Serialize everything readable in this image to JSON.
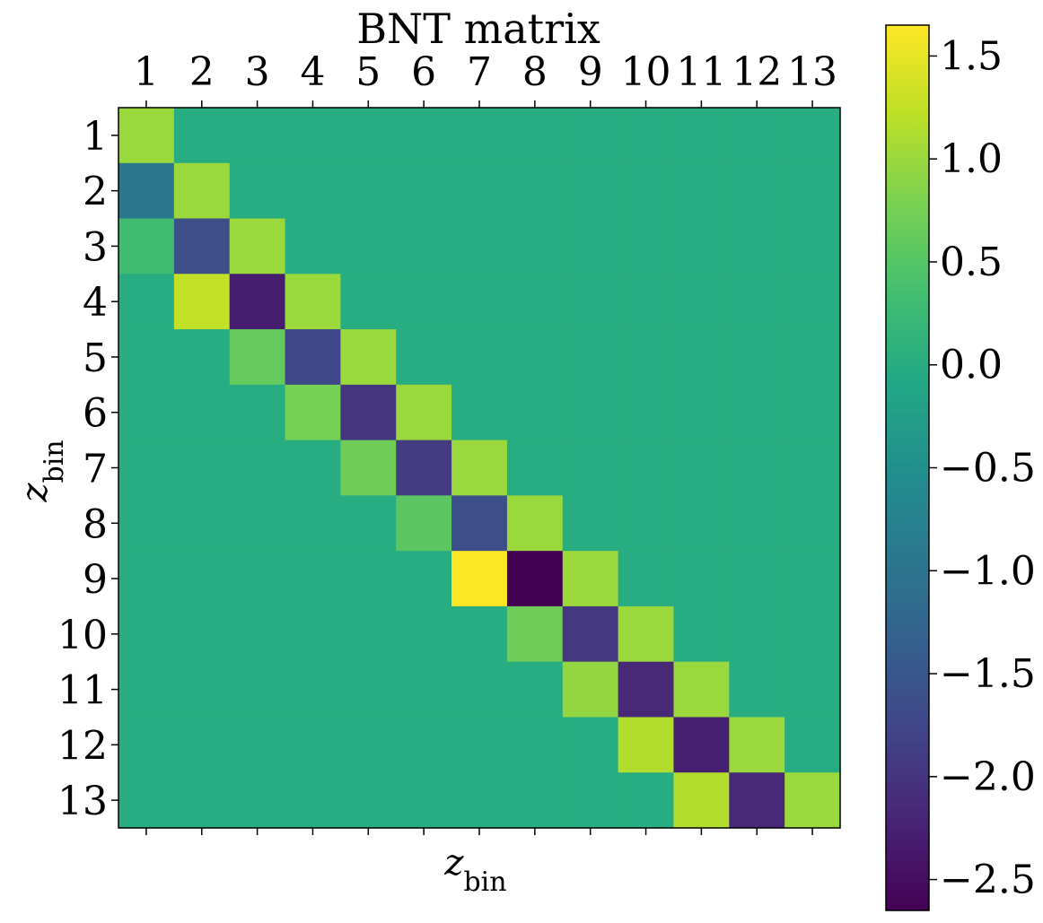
{
  "chart_data": {
    "type": "heatmap",
    "title": "BNT matrix",
    "xlabel": "z_bin",
    "ylabel": "z_bin",
    "x_tick_labels": [
      "1",
      "2",
      "3",
      "4",
      "5",
      "6",
      "7",
      "8",
      "9",
      "10",
      "11",
      "12",
      "13"
    ],
    "y_tick_labels": [
      "1",
      "2",
      "3",
      "4",
      "5",
      "6",
      "7",
      "8",
      "9",
      "10",
      "11",
      "12",
      "13"
    ],
    "x_ticks_position": "top",
    "colormap": "viridis",
    "vmin": -2.65,
    "vmax": 1.65,
    "colorbar": {
      "ticks": [
        1.5,
        1.0,
        0.5,
        0.0,
        -0.5,
        -1.0,
        -1.5,
        -2.0,
        -2.5
      ],
      "tick_labels": [
        "1.5",
        "1.0",
        "0.5",
        "0.0",
        "−0.5",
        "−1.0",
        "−1.5",
        "−2.0",
        "−2.5"
      ]
    },
    "values": [
      [
        1.0,
        0,
        0,
        0,
        0,
        0,
        0,
        0,
        0,
        0,
        0,
        0,
        0
      ],
      [
        -0.94,
        1.0,
        0,
        0,
        0,
        0,
        0,
        0,
        0,
        0,
        0,
        0,
        0
      ],
      [
        0.31,
        -1.62,
        1.0,
        0,
        0,
        0,
        0,
        0,
        0,
        0,
        0,
        0,
        0
      ],
      [
        0,
        1.25,
        -2.3,
        1.0,
        0,
        0,
        0,
        0,
        0,
        0,
        0,
        0,
        0
      ],
      [
        0,
        0,
        0.62,
        -1.72,
        1.0,
        0,
        0,
        0,
        0,
        0,
        0,
        0,
        0
      ],
      [
        0,
        0,
        0,
        0.76,
        -1.96,
        1.0,
        0,
        0,
        0,
        0,
        0,
        0,
        0
      ],
      [
        0,
        0,
        0,
        0,
        0.7,
        -1.9,
        1.0,
        0,
        0,
        0,
        0,
        0,
        0
      ],
      [
        0,
        0,
        0,
        0,
        0,
        0.55,
        -1.62,
        1.0,
        0,
        0,
        0,
        0,
        0
      ],
      [
        0,
        0,
        0,
        0,
        0,
        0,
        1.65,
        -2.65,
        1.0,
        0,
        0,
        0,
        0
      ],
      [
        0,
        0,
        0,
        0,
        0,
        0,
        0,
        0.7,
        -1.95,
        1.0,
        0,
        0,
        0
      ],
      [
        0,
        0,
        0,
        0,
        0,
        0,
        0,
        0,
        0.95,
        -2.15,
        1.0,
        0,
        0
      ],
      [
        0,
        0,
        0,
        0,
        0,
        0,
        0,
        0,
        0,
        1.15,
        -2.28,
        1.0,
        0
      ],
      [
        0,
        0,
        0,
        0,
        0,
        0,
        0,
        0,
        0,
        0,
        1.15,
        -2.15,
        1.0
      ]
    ]
  }
}
